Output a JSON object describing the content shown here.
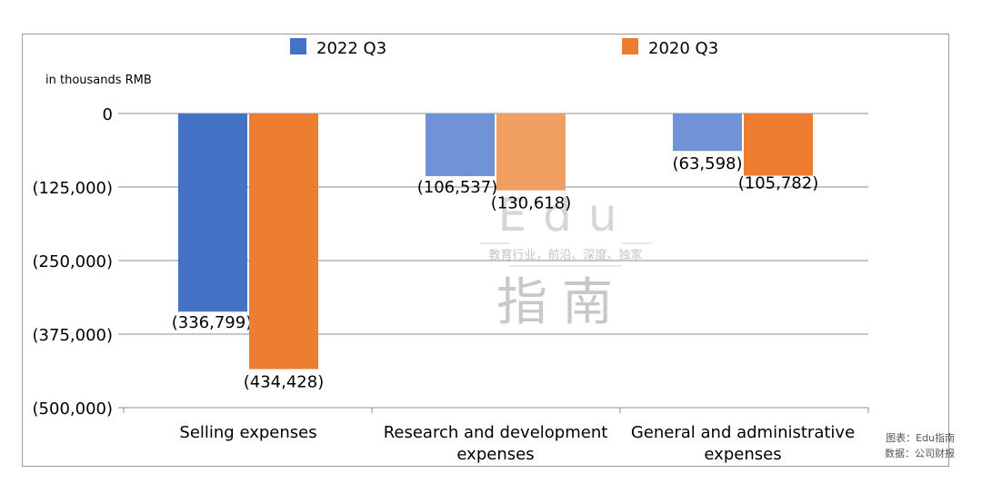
{
  "chart_data": {
    "type": "bar",
    "unit_label": "in thousands RMB",
    "categories": [
      [
        "Selling expenses"
      ],
      [
        "Research and development",
        "expenses"
      ],
      [
        "General and administrative",
        "expenses"
      ]
    ],
    "series": [
      {
        "name": "2022 Q3",
        "color": "#4472c4",
        "values": [
          -336799,
          -106537,
          -63598
        ],
        "labels": [
          "(336,799)",
          "(106,537)",
          "(63,598)"
        ],
        "bar_colors": [
          "#4472c4",
          "#6f93d6",
          "#6f93d6"
        ]
      },
      {
        "name": "2020 Q3",
        "color": "#ed7d31",
        "values": [
          -434428,
          -130618,
          -105782
        ],
        "labels": [
          "(434,428)",
          "(130,618)",
          "(105,782)"
        ],
        "bar_colors": [
          "#ed7d31",
          "#f19e62",
          "#ed7d31"
        ]
      }
    ],
    "yticks": [
      0,
      -125000,
      -250000,
      -375000,
      -500000
    ],
    "ytick_labels": [
      "0",
      "(125,000)",
      "(250,000)",
      "(375,000)",
      "(500,000)"
    ],
    "ylim": [
      -500000,
      0
    ],
    "gridlines": true,
    "legend_position": "top"
  },
  "watermark": {
    "logo_text": "Edu",
    "tagline": "教育行业，前沿、深度、独家",
    "brand": "指南"
  },
  "source": {
    "chart_credit": "图表：Edu指南",
    "data_credit": "数据：公司财报"
  }
}
